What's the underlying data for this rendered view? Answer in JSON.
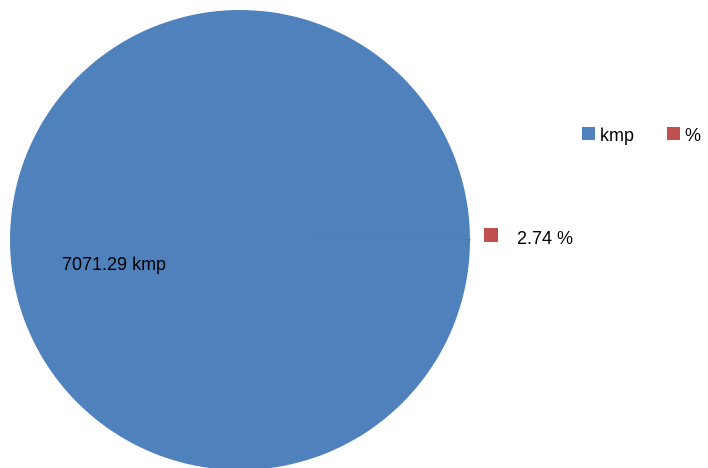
{
  "chart_data": {
    "type": "pie",
    "categories": [
      "kmp",
      "%"
    ],
    "values": [
      7071.29,
      2.74
    ],
    "colors": [
      "#4f81bd",
      "#c0504d"
    ],
    "data_labels": [
      "7071.29 kmp",
      "2.74 %"
    ],
    "legend": {
      "placement": "top-right",
      "entries": [
        "kmp",
        "%"
      ]
    },
    "title": ""
  }
}
